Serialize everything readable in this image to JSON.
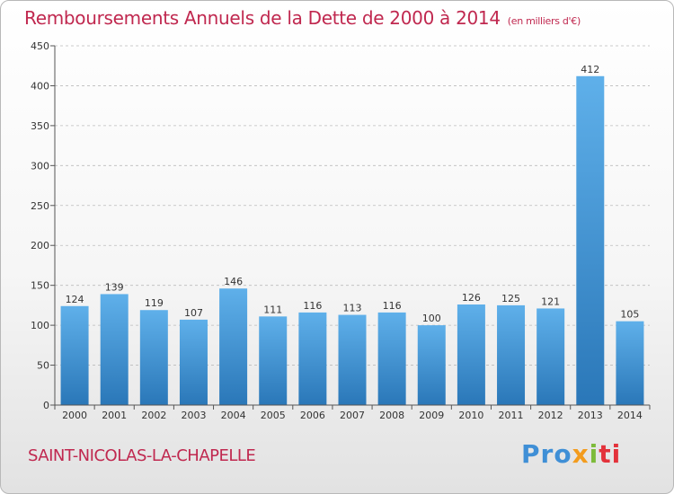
{
  "header": {
    "title": "Remboursements Annuels de la Dette de 2000 à 2014",
    "unit": "(en milliers d'€)"
  },
  "footer": {
    "commune": "SAINT-NICOLAS-LA-CHAPELLE",
    "logo": {
      "p1": "Pro",
      "p2": "x",
      "p3": "i",
      "p4": "ti"
    }
  },
  "colors": {
    "accent": "#c0284f",
    "bar_top": "#5fb0ea",
    "bar_bottom": "#2a77b8",
    "grid": "#bbbbbb"
  },
  "chart_data": {
    "type": "bar",
    "title": "Remboursements Annuels de la Dette de 2000 à 2014",
    "xlabel": "",
    "ylabel": "",
    "categories": [
      "2000",
      "2001",
      "2002",
      "2003",
      "2004",
      "2005",
      "2006",
      "2007",
      "2008",
      "2009",
      "2010",
      "2011",
      "2012",
      "2013",
      "2014"
    ],
    "values": [
      124,
      139,
      119,
      107,
      146,
      111,
      116,
      113,
      116,
      100,
      126,
      125,
      121,
      412,
      105
    ],
    "ylim": [
      0,
      450
    ],
    "yticks": [
      0,
      50,
      100,
      150,
      200,
      250,
      300,
      350,
      400,
      450
    ],
    "grid": true
  }
}
